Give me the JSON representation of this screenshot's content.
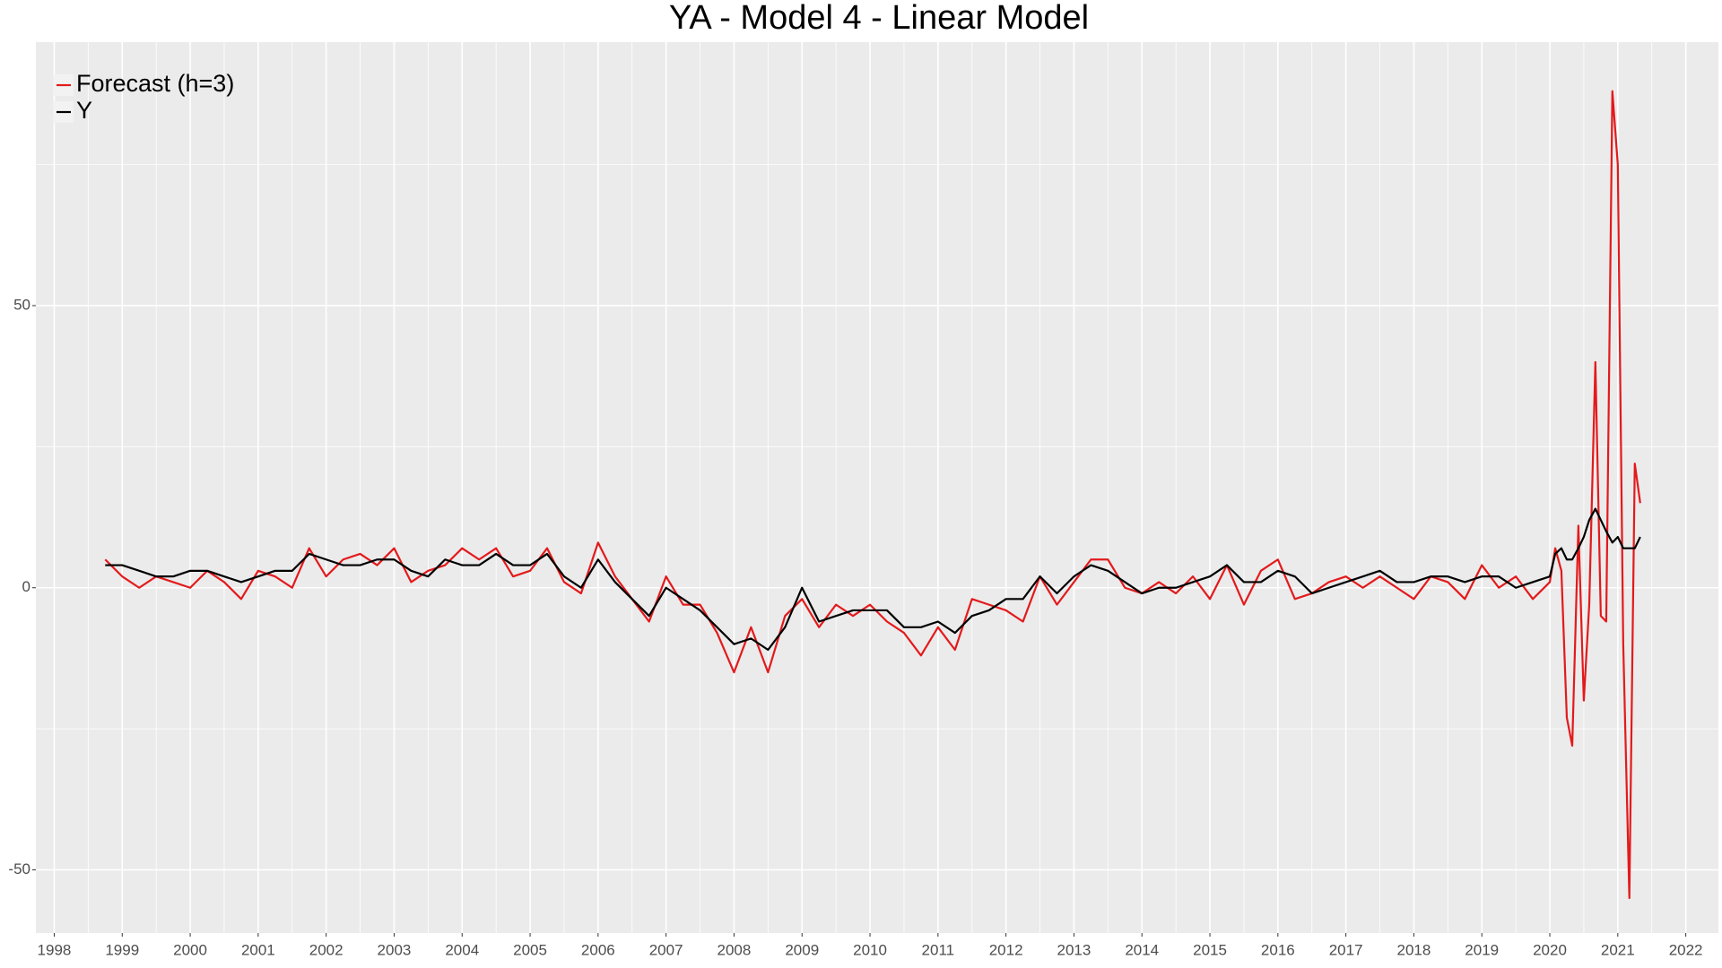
{
  "chart_data": {
    "type": "line",
    "title": "YA - Model 4 - Linear Model",
    "x": [
      1998.75,
      1999,
      1999.25,
      1999.5,
      1999.75,
      2000,
      2000.25,
      2000.5,
      2000.75,
      2001,
      2001.25,
      2001.5,
      2001.75,
      2002,
      2002.25,
      2002.5,
      2002.75,
      2003,
      2003.25,
      2003.5,
      2003.75,
      2004,
      2004.25,
      2004.5,
      2004.75,
      2005,
      2005.25,
      2005.5,
      2005.75,
      2006,
      2006.25,
      2006.5,
      2006.75,
      2007,
      2007.25,
      2007.5,
      2007.75,
      2008,
      2008.25,
      2008.5,
      2008.75,
      2009,
      2009.25,
      2009.5,
      2009.75,
      2010,
      2010.25,
      2010.5,
      2010.75,
      2011,
      2011.25,
      2011.5,
      2011.75,
      2012,
      2012.25,
      2012.5,
      2012.75,
      2013,
      2013.25,
      2013.5,
      2013.75,
      2014,
      2014.25,
      2014.5,
      2014.75,
      2015,
      2015.25,
      2015.5,
      2015.75,
      2016,
      2016.25,
      2016.5,
      2016.75,
      2017,
      2017.25,
      2017.5,
      2017.75,
      2018,
      2018.25,
      2018.5,
      2018.75,
      2019,
      2019.25,
      2019.5,
      2019.75,
      2020,
      2020.08,
      2020.17,
      2020.25,
      2020.33,
      2020.42,
      2020.5,
      2020.58,
      2020.67,
      2020.75,
      2020.83,
      2020.92,
      2021,
      2021.08,
      2021.17,
      2021.25,
      2021.33
    ],
    "series": [
      {
        "name": "Forecast (h=3)",
        "color": "#e31a1c",
        "values": [
          5,
          2,
          0,
          2,
          1,
          0,
          3,
          1,
          -2,
          3,
          2,
          0,
          7,
          2,
          5,
          6,
          4,
          7,
          1,
          3,
          4,
          7,
          5,
          7,
          2,
          3,
          7,
          1,
          -1,
          8,
          2,
          -2,
          -6,
          2,
          -3,
          -3,
          -8,
          -15,
          -7,
          -15,
          -5,
          -2,
          -7,
          -3,
          -5,
          -3,
          -6,
          -8,
          -12,
          -7,
          -11,
          -2,
          -3,
          -4,
          -6,
          2,
          -3,
          1,
          5,
          5,
          0,
          -1,
          1,
          -1,
          2,
          -2,
          4,
          -3,
          3,
          5,
          -2,
          -1,
          1,
          2,
          0,
          2,
          0,
          -2,
          2,
          1,
          -2,
          4,
          0,
          2,
          -2,
          1,
          7,
          3,
          -23,
          -28,
          11,
          -20,
          -3,
          40,
          -5,
          -6,
          88,
          75,
          -10,
          -55,
          22,
          15
        ]
      },
      {
        "name": "Y",
        "color": "#000000",
        "values": [
          4,
          4,
          3,
          2,
          2,
          3,
          3,
          2,
          1,
          2,
          3,
          3,
          6,
          5,
          4,
          4,
          5,
          5,
          3,
          2,
          5,
          4,
          4,
          6,
          4,
          4,
          6,
          2,
          0,
          5,
          1,
          -2,
          -5,
          0,
          -2,
          -4,
          -7,
          -10,
          -9,
          -11,
          -7,
          0,
          -6,
          -5,
          -4,
          -4,
          -4,
          -7,
          -7,
          -6,
          -8,
          -5,
          -4,
          -2,
          -2,
          2,
          -1,
          2,
          4,
          3,
          1,
          -1,
          0,
          0,
          1,
          2,
          4,
          1,
          1,
          3,
          2,
          -1,
          0,
          1,
          2,
          3,
          1,
          1,
          2,
          2,
          1,
          2,
          2,
          0,
          1,
          2,
          6,
          7,
          5,
          5,
          7,
          9,
          12,
          14,
          12,
          10,
          8,
          9,
          7,
          7,
          7,
          9
        ]
      }
    ],
    "xlim": [
      1997.73,
      2022.48
    ],
    "xticks": [
      1998,
      1999,
      2000,
      2001,
      2002,
      2003,
      2004,
      2005,
      2006,
      2007,
      2008,
      2009,
      2010,
      2011,
      2012,
      2013,
      2014,
      2015,
      2016,
      2017,
      2018,
      2019,
      2020,
      2021,
      2022
    ],
    "ylim": [
      -61.2,
      96.7
    ],
    "yticks": [
      -50,
      0,
      50
    ],
    "grid": true,
    "legend": "top-left"
  }
}
